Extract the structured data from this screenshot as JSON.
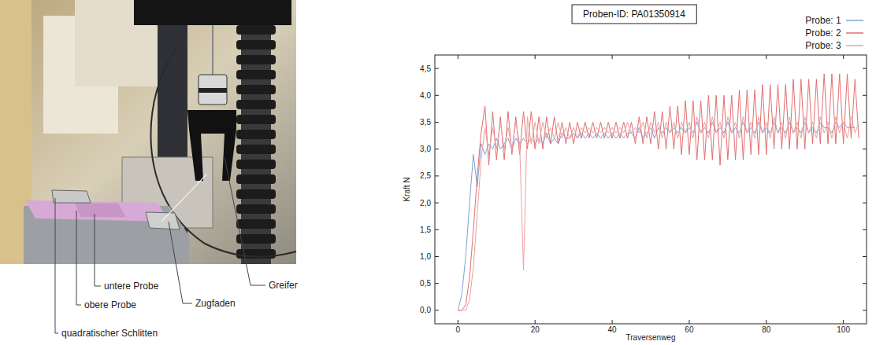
{
  "photo": {
    "labels": [
      "untere Probe",
      "obere Probe",
      "quadratischer Schlitten",
      "Zugfaden",
      "Greifer"
    ]
  },
  "chart_data": {
    "type": "line",
    "title": "Proben-ID: PA01350914",
    "x_label": "Traversenweg",
    "y_label": "Kraft N",
    "xlim": [
      -6,
      106
    ],
    "ylim": [
      -0.25,
      4.75
    ],
    "xticks": [
      0,
      20,
      40,
      60,
      80,
      100
    ],
    "yticks": [
      {
        "value": 0,
        "label": "0,0"
      },
      {
        "value": 0.5,
        "label": "0,5"
      },
      {
        "value": 1,
        "label": "1,0"
      },
      {
        "value": 1.5,
        "label": "1,5"
      },
      {
        "value": 2,
        "label": "2,0"
      },
      {
        "value": 2.5,
        "label": "2,5"
      },
      {
        "value": 3,
        "label": "3,0"
      },
      {
        "value": 3.5,
        "label": "3,5"
      },
      {
        "value": 4,
        "label": "4,0"
      },
      {
        "value": 4.5,
        "label": "4,5"
      }
    ],
    "grid": false,
    "legend": "top-right",
    "x": [
      0,
      1,
      2,
      3,
      4,
      5,
      6,
      7,
      8,
      9,
      10,
      11,
      12,
      13,
      14,
      15,
      16,
      17,
      18,
      19,
      20,
      21,
      22,
      23,
      24,
      25,
      26,
      27,
      28,
      29,
      30,
      31,
      32,
      33,
      34,
      35,
      36,
      37,
      38,
      39,
      40,
      41,
      42,
      43,
      44,
      45,
      46,
      47,
      48,
      49,
      50,
      51,
      52,
      53,
      54,
      55,
      56,
      57,
      58,
      59,
      60,
      61,
      62,
      63,
      64,
      65,
      66,
      67,
      68,
      69,
      70,
      71,
      72,
      73,
      74,
      75,
      76,
      77,
      78,
      79,
      80,
      81,
      82,
      83,
      84,
      85,
      86,
      87,
      88,
      89,
      90,
      91,
      92,
      93,
      94,
      95,
      96,
      97,
      98,
      99,
      100,
      101,
      102,
      103,
      104
    ],
    "series": [
      {
        "name": "Probe: 1",
        "color": "#7fa3d6",
        "values": [
          0,
          0.3,
          1.0,
          2.0,
          2.9,
          2.3,
          3.1,
          2.9,
          3.1,
          3.0,
          3.2,
          3.0,
          3.1,
          3.2,
          3.0,
          3.2,
          3.1,
          3.2,
          3.1,
          3.2,
          3.1,
          3.2,
          3.1,
          3.3,
          3.1,
          3.2,
          3.1,
          3.3,
          3.2,
          3.2,
          3.3,
          3.2,
          3.3,
          3.2,
          3.3,
          3.2,
          3.3,
          3.2,
          3.3,
          3.2,
          3.3,
          3.2,
          3.3,
          3.2,
          3.3,
          3.3,
          3.2,
          3.4,
          3.2,
          3.3,
          3.4,
          3.2,
          3.4,
          3.3,
          3.4,
          3.3,
          3.4,
          3.3,
          3.4,
          3.3,
          3.4,
          3.3,
          3.5,
          3.3,
          3.4,
          3.3,
          3.5,
          3.3,
          3.4,
          3.3,
          3.5,
          3.3,
          3.4,
          3.3,
          3.5,
          3.3,
          3.4,
          3.3,
          3.5,
          3.3,
          3.4,
          3.3,
          3.5,
          3.3,
          3.4,
          3.3,
          3.5,
          3.3,
          3.4,
          3.3,
          3.5,
          3.3,
          3.4,
          3.3,
          3.5,
          3.4,
          3.4,
          3.3,
          3.5,
          3.4,
          3.5,
          3.4,
          3.4,
          3.4,
          null
        ]
      },
      {
        "name": "Probe: 2",
        "color": "#e26f6f",
        "values": [
          0,
          0,
          0.1,
          0.6,
          1.5,
          2.5,
          3.3,
          3.8,
          2.7,
          3.7,
          2.8,
          3.6,
          2.8,
          3.7,
          2.9,
          3.6,
          2.9,
          3.7,
          3.0,
          3.7,
          3.0,
          3.6,
          3.0,
          3.6,
          3.1,
          3.6,
          3.1,
          3.5,
          3.1,
          3.5,
          3.1,
          3.5,
          3.2,
          3.5,
          3.2,
          3.5,
          3.2,
          3.5,
          3.2,
          3.5,
          3.2,
          3.5,
          3.2,
          3.5,
          3.2,
          3.5,
          3.1,
          3.6,
          3.1,
          3.6,
          3.1,
          3.7,
          3.0,
          3.7,
          3.0,
          3.8,
          3.0,
          3.8,
          2.9,
          3.9,
          2.9,
          3.9,
          2.8,
          3.9,
          2.8,
          4.0,
          2.8,
          4.0,
          2.7,
          4.0,
          2.8,
          4.0,
          2.8,
          4.1,
          2.8,
          4.1,
          2.9,
          4.1,
          2.9,
          4.2,
          2.9,
          4.2,
          3.0,
          4.2,
          3.0,
          4.2,
          3.0,
          4.3,
          3.0,
          4.3,
          3.0,
          4.3,
          3.1,
          4.3,
          3.1,
          4.4,
          3.1,
          4.4,
          3.1,
          4.4,
          3.1,
          4.4,
          3.2,
          4.3,
          3.2
        ]
      },
      {
        "name": "Probe: 3",
        "color": "#eba0a0",
        "values": [
          0,
          0,
          0,
          0.2,
          0.8,
          1.8,
          2.8,
          3.4,
          2.9,
          3.4,
          3.0,
          3.5,
          3.0,
          3.4,
          3.0,
          3.5,
          3.1,
          0.75,
          3.6,
          3.1,
          3.5,
          3.1,
          3.5,
          3.2,
          3.4,
          3.2,
          3.5,
          3.2,
          3.4,
          3.2,
          3.4,
          3.2,
          3.4,
          3.3,
          3.4,
          3.3,
          3.4,
          3.3,
          3.4,
          3.3,
          3.4,
          3.3,
          3.4,
          3.3,
          3.5,
          3.3,
          3.4,
          3.3,
          3.5,
          3.2,
          3.5,
          3.3,
          3.5,
          3.2,
          3.5,
          3.3,
          3.5,
          3.2,
          3.5,
          3.3,
          3.5,
          3.2,
          3.6,
          3.3,
          3.5,
          3.2,
          3.6,
          3.3,
          3.5,
          3.2,
          3.6,
          3.3,
          3.5,
          3.2,
          3.6,
          3.3,
          3.5,
          3.2,
          3.6,
          3.3,
          3.5,
          3.2,
          3.6,
          3.3,
          3.5,
          3.2,
          3.6,
          3.3,
          3.5,
          3.2,
          3.6,
          3.3,
          3.5,
          3.2,
          3.6,
          3.3,
          3.5,
          3.2,
          3.6,
          3.3,
          3.5,
          3.2,
          3.6,
          3.3,
          3.5
        ]
      }
    ]
  }
}
